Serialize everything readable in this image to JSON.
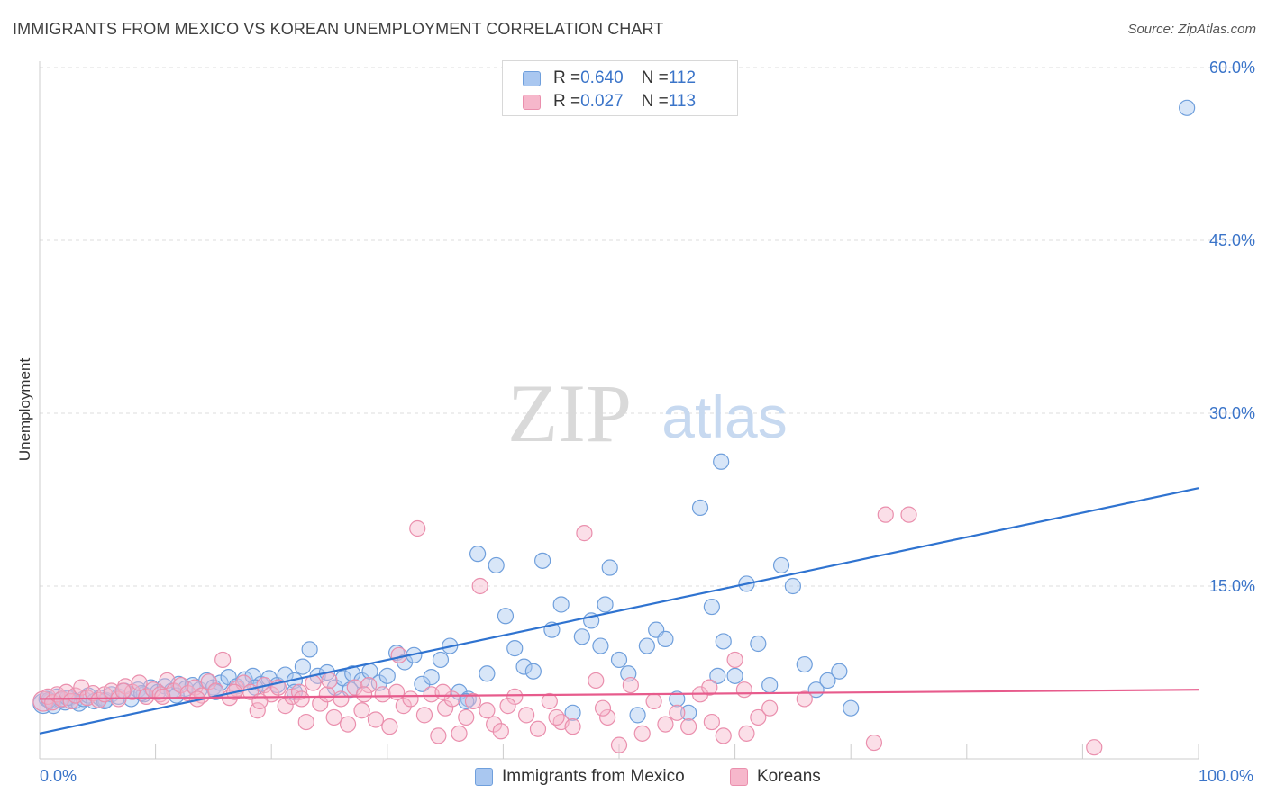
{
  "header": {
    "title": "IMMIGRANTS FROM MEXICO VS KOREAN UNEMPLOYMENT CORRELATION CHART",
    "source": "Source: ZipAtlas.com"
  },
  "watermark": {
    "zip": "ZIP",
    "atlas": "atlas"
  },
  "legend_top": {
    "rows": [
      {
        "r_label": "R = ",
        "r_value": "0.640",
        "n_label": "N = ",
        "n_value": "112"
      },
      {
        "r_label": "R = ",
        "r_value": "0.027",
        "n_label": "N = ",
        "n_value": "113"
      }
    ]
  },
  "colors": {
    "blue_fill": "#a9c7f0",
    "blue_stroke": "#6f9fdc",
    "blue_line": "#2f73d0",
    "pink_fill": "#f6b7cb",
    "pink_stroke": "#ea8fad",
    "pink_line": "#e75b8c",
    "axis_text": "#3a74c9"
  },
  "chart_data": {
    "type": "scatter",
    "title": "IMMIGRANTS FROM MEXICO VS KOREAN UNEMPLOYMENT CORRELATION CHART",
    "xlabel": "",
    "ylabel": "Unemployment",
    "xlim": [
      0,
      100
    ],
    "ylim": [
      0,
      60
    ],
    "x_tick_labels": [
      "0.0%",
      "100.0%"
    ],
    "y_ticks": [
      15,
      30,
      45,
      60
    ],
    "y_tick_labels": [
      "15.0%",
      "30.0%",
      "45.0%",
      "60.0%"
    ],
    "grid": true,
    "legend_position": "bottom",
    "series": [
      {
        "name": "Immigrants from Mexico",
        "R": 0.64,
        "N": 112,
        "trend": {
          "x": [
            0,
            100
          ],
          "y": [
            2.2,
            23.5
          ]
        },
        "points": [
          [
            0.3,
            4.8
          ],
          [
            0.6,
            5.2
          ],
          [
            0.9,
            5.0
          ],
          [
            1.2,
            4.6
          ],
          [
            1.5,
            5.4
          ],
          [
            1.8,
            5.1
          ],
          [
            2.2,
            4.9
          ],
          [
            2.6,
            5.3
          ],
          [
            3.0,
            5.0
          ],
          [
            3.4,
            4.8
          ],
          [
            3.8,
            5.2
          ],
          [
            4.2,
            5.5
          ],
          [
            4.7,
            5.0
          ],
          [
            5.2,
            5.3
          ],
          [
            5.7,
            5.1
          ],
          [
            6.2,
            5.6
          ],
          [
            6.8,
            5.4
          ],
          [
            7.3,
            5.9
          ],
          [
            7.9,
            5.2
          ],
          [
            8.5,
            6.0
          ],
          [
            9.0,
            5.6
          ],
          [
            9.6,
            6.2
          ],
          [
            10.2,
            5.8
          ],
          [
            10.8,
            6.3
          ],
          [
            11.4,
            5.9
          ],
          [
            12.0,
            6.5
          ],
          [
            12.6,
            6.1
          ],
          [
            13.2,
            6.4
          ],
          [
            13.8,
            6.0
          ],
          [
            14.4,
            6.8
          ],
          [
            15.0,
            6.2
          ],
          [
            15.6,
            6.6
          ],
          [
            16.3,
            7.1
          ],
          [
            17.0,
            6.3
          ],
          [
            17.7,
            6.9
          ],
          [
            18.4,
            7.2
          ],
          [
            19.1,
            6.5
          ],
          [
            19.8,
            7.0
          ],
          [
            20.5,
            6.4
          ],
          [
            21.2,
            7.3
          ],
          [
            22.0,
            6.8
          ],
          [
            22.7,
            8.0
          ],
          [
            23.3,
            9.5
          ],
          [
            24.0,
            7.2
          ],
          [
            24.8,
            7.5
          ],
          [
            25.5,
            6.2
          ],
          [
            26.2,
            7.0
          ],
          [
            27.0,
            7.4
          ],
          [
            27.8,
            6.8
          ],
          [
            28.5,
            7.6
          ],
          [
            29.3,
            6.6
          ],
          [
            30.0,
            7.2
          ],
          [
            30.8,
            9.2
          ],
          [
            31.5,
            8.4
          ],
          [
            32.3,
            9.0
          ],
          [
            33.0,
            6.5
          ],
          [
            33.8,
            7.1
          ],
          [
            34.6,
            8.6
          ],
          [
            35.4,
            9.8
          ],
          [
            36.2,
            5.8
          ],
          [
            37.0,
            5.2
          ],
          [
            37.8,
            17.8
          ],
          [
            38.6,
            7.4
          ],
          [
            39.4,
            16.8
          ],
          [
            40.2,
            12.4
          ],
          [
            41.0,
            9.6
          ],
          [
            41.8,
            8.0
          ],
          [
            42.6,
            7.6
          ],
          [
            43.4,
            17.2
          ],
          [
            44.2,
            11.2
          ],
          [
            45.0,
            13.4
          ],
          [
            46.0,
            4.0
          ],
          [
            46.8,
            10.6
          ],
          [
            47.6,
            12.0
          ],
          [
            48.4,
            9.8
          ],
          [
            49.2,
            16.6
          ],
          [
            50.0,
            8.6
          ],
          [
            50.8,
            7.4
          ],
          [
            51.6,
            3.8
          ],
          [
            52.4,
            9.8
          ],
          [
            53.2,
            11.2
          ],
          [
            54.0,
            10.4
          ],
          [
            55.0,
            5.2
          ],
          [
            56.0,
            4.0
          ],
          [
            57.0,
            21.8
          ],
          [
            58.0,
            13.2
          ],
          [
            59.0,
            10.2
          ],
          [
            60.0,
            7.2
          ],
          [
            61.0,
            15.2
          ],
          [
            62.0,
            10.0
          ],
          [
            63.0,
            6.4
          ],
          [
            64.0,
            16.8
          ],
          [
            65.0,
            15.0
          ],
          [
            66.0,
            8.2
          ],
          [
            67.0,
            6.0
          ],
          [
            68.0,
            6.8
          ],
          [
            69.0,
            7.6
          ],
          [
            70.0,
            4.4
          ],
          [
            58.5,
            7.2
          ],
          [
            48.8,
            13.4
          ],
          [
            36.8,
            5.0
          ],
          [
            26.8,
            6.0
          ],
          [
            22.0,
            5.8
          ],
          [
            18.6,
            6.2
          ],
          [
            15.2,
            5.8
          ],
          [
            11.8,
            5.5
          ],
          [
            8.8,
            5.7
          ],
          [
            5.6,
            5.0
          ],
          [
            2.4,
            5.3
          ],
          [
            0.8,
            5.1
          ],
          [
            58.8,
            25.8
          ],
          [
            99.0,
            56.5
          ]
        ]
      },
      {
        "name": "Koreans",
        "R": 0.027,
        "N": 113,
        "trend": {
          "x": [
            0,
            100
          ],
          "y": [
            5.2,
            6.0
          ]
        },
        "points": [
          [
            0.3,
            5.0
          ],
          [
            0.7,
            5.4
          ],
          [
            1.1,
            4.9
          ],
          [
            1.5,
            5.6
          ],
          [
            1.9,
            5.2
          ],
          [
            2.3,
            5.8
          ],
          [
            2.7,
            5.0
          ],
          [
            3.1,
            5.5
          ],
          [
            3.6,
            6.2
          ],
          [
            4.1,
            5.3
          ],
          [
            4.6,
            5.7
          ],
          [
            5.1,
            5.1
          ],
          [
            5.6,
            5.6
          ],
          [
            6.2,
            5.9
          ],
          [
            6.8,
            5.2
          ],
          [
            7.4,
            6.3
          ],
          [
            8.0,
            5.8
          ],
          [
            8.6,
            6.6
          ],
          [
            9.2,
            5.4
          ],
          [
            9.8,
            6.0
          ],
          [
            10.4,
            5.6
          ],
          [
            11.0,
            6.8
          ],
          [
            11.6,
            5.9
          ],
          [
            12.2,
            6.4
          ],
          [
            12.8,
            5.7
          ],
          [
            13.4,
            6.2
          ],
          [
            14.0,
            5.5
          ],
          [
            14.6,
            6.7
          ],
          [
            15.2,
            5.9
          ],
          [
            15.8,
            8.6
          ],
          [
            16.4,
            5.3
          ],
          [
            17.0,
            6.1
          ],
          [
            17.6,
            6.6
          ],
          [
            18.2,
            5.8
          ],
          [
            18.8,
            4.2
          ],
          [
            19.4,
            6.4
          ],
          [
            20.0,
            5.6
          ],
          [
            20.6,
            6.2
          ],
          [
            21.2,
            4.6
          ],
          [
            21.8,
            5.4
          ],
          [
            22.4,
            5.8
          ],
          [
            23.0,
            3.2
          ],
          [
            23.6,
            6.6
          ],
          [
            24.2,
            4.8
          ],
          [
            24.8,
            5.6
          ],
          [
            25.4,
            3.6
          ],
          [
            26.0,
            5.2
          ],
          [
            26.6,
            3.0
          ],
          [
            27.2,
            6.2
          ],
          [
            27.8,
            4.2
          ],
          [
            28.4,
            6.4
          ],
          [
            29.0,
            3.4
          ],
          [
            29.6,
            5.6
          ],
          [
            30.2,
            2.8
          ],
          [
            30.8,
            5.8
          ],
          [
            31.4,
            4.6
          ],
          [
            32.0,
            5.2
          ],
          [
            32.6,
            20.0
          ],
          [
            33.2,
            3.8
          ],
          [
            33.8,
            5.6
          ],
          [
            34.4,
            2.0
          ],
          [
            35.0,
            4.4
          ],
          [
            35.6,
            5.2
          ],
          [
            36.2,
            2.2
          ],
          [
            36.8,
            3.6
          ],
          [
            37.4,
            5.0
          ],
          [
            38.0,
            15.0
          ],
          [
            38.6,
            4.2
          ],
          [
            39.2,
            3.0
          ],
          [
            39.8,
            2.4
          ],
          [
            41.0,
            5.4
          ],
          [
            42.0,
            3.8
          ],
          [
            43.0,
            2.6
          ],
          [
            44.0,
            5.0
          ],
          [
            45.0,
            3.2
          ],
          [
            46.0,
            2.8
          ],
          [
            47.0,
            19.6
          ],
          [
            48.0,
            6.8
          ],
          [
            49.0,
            3.6
          ],
          [
            50.0,
            1.2
          ],
          [
            51.0,
            6.4
          ],
          [
            52.0,
            2.2
          ],
          [
            53.0,
            5.0
          ],
          [
            54.0,
            3.0
          ],
          [
            55.0,
            4.0
          ],
          [
            56.0,
            2.8
          ],
          [
            57.0,
            5.6
          ],
          [
            58.0,
            3.2
          ],
          [
            59.0,
            2.0
          ],
          [
            60.0,
            8.6
          ],
          [
            61.0,
            2.2
          ],
          [
            62.0,
            3.6
          ],
          [
            63.0,
            4.4
          ],
          [
            66.0,
            5.2
          ],
          [
            72.0,
            1.4
          ],
          [
            73.0,
            21.2
          ],
          [
            75.0,
            21.2
          ],
          [
            91.0,
            1.0
          ],
          [
            60.8,
            6.0
          ],
          [
            57.8,
            6.2
          ],
          [
            48.6,
            4.4
          ],
          [
            44.6,
            3.6
          ],
          [
            40.4,
            4.6
          ],
          [
            34.8,
            5.8
          ],
          [
            31.0,
            9.0
          ],
          [
            28.0,
            5.6
          ],
          [
            25.0,
            6.8
          ],
          [
            22.6,
            5.2
          ],
          [
            19.0,
            5.0
          ],
          [
            16.8,
            5.8
          ],
          [
            13.6,
            5.2
          ],
          [
            10.6,
            5.4
          ],
          [
            7.2,
            5.9
          ]
        ]
      }
    ]
  },
  "legend_bottom": {
    "items": [
      {
        "label": "Immigrants from Mexico"
      },
      {
        "label": "Koreans"
      }
    ]
  }
}
